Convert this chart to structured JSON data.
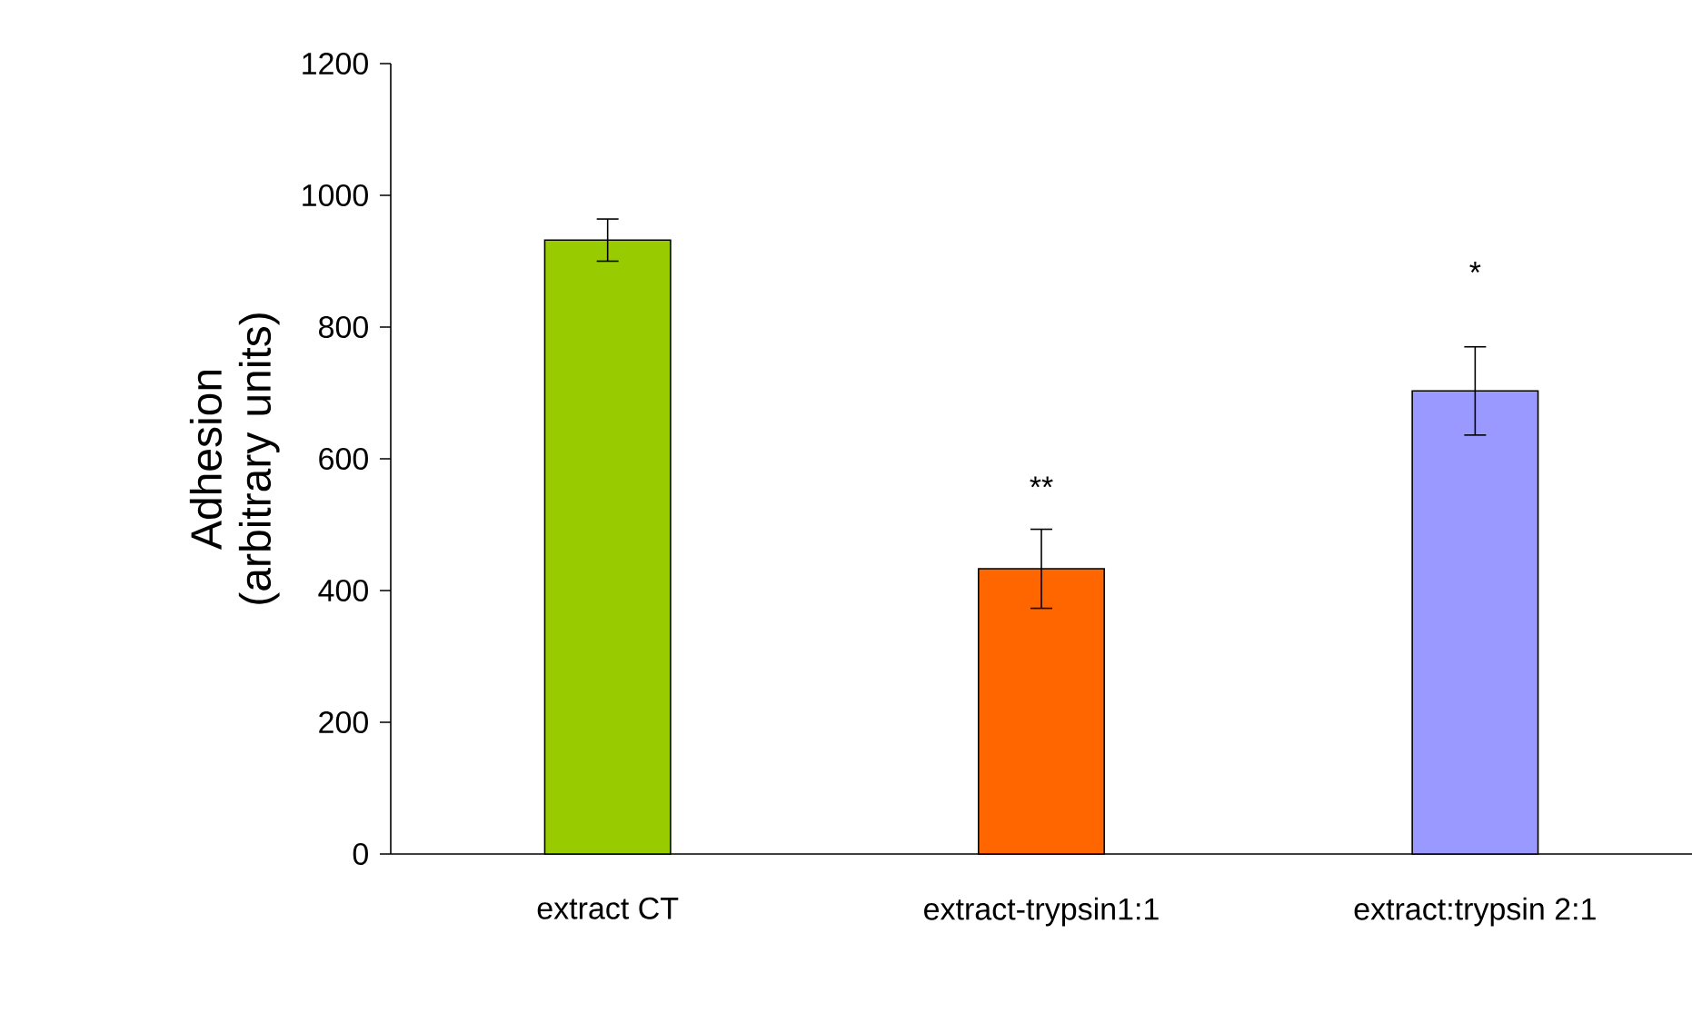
{
  "chart_data": {
    "type": "bar",
    "ylabel": "Adhesion (arbitrary units)",
    "categories": [
      "extract CT",
      "extract-trypsin1:1",
      "extract:trypsin 2:1"
    ],
    "values": [
      932,
      433,
      703
    ],
    "errors": [
      32,
      60,
      67
    ],
    "colors": [
      "#99cc00",
      "#ff6600",
      "#9999ff"
    ],
    "ylim": [
      0,
      1200
    ],
    "yticks": [
      0,
      200,
      400,
      600,
      800,
      1000,
      1200
    ],
    "annotations": [
      "**",
      "*"
    ]
  }
}
